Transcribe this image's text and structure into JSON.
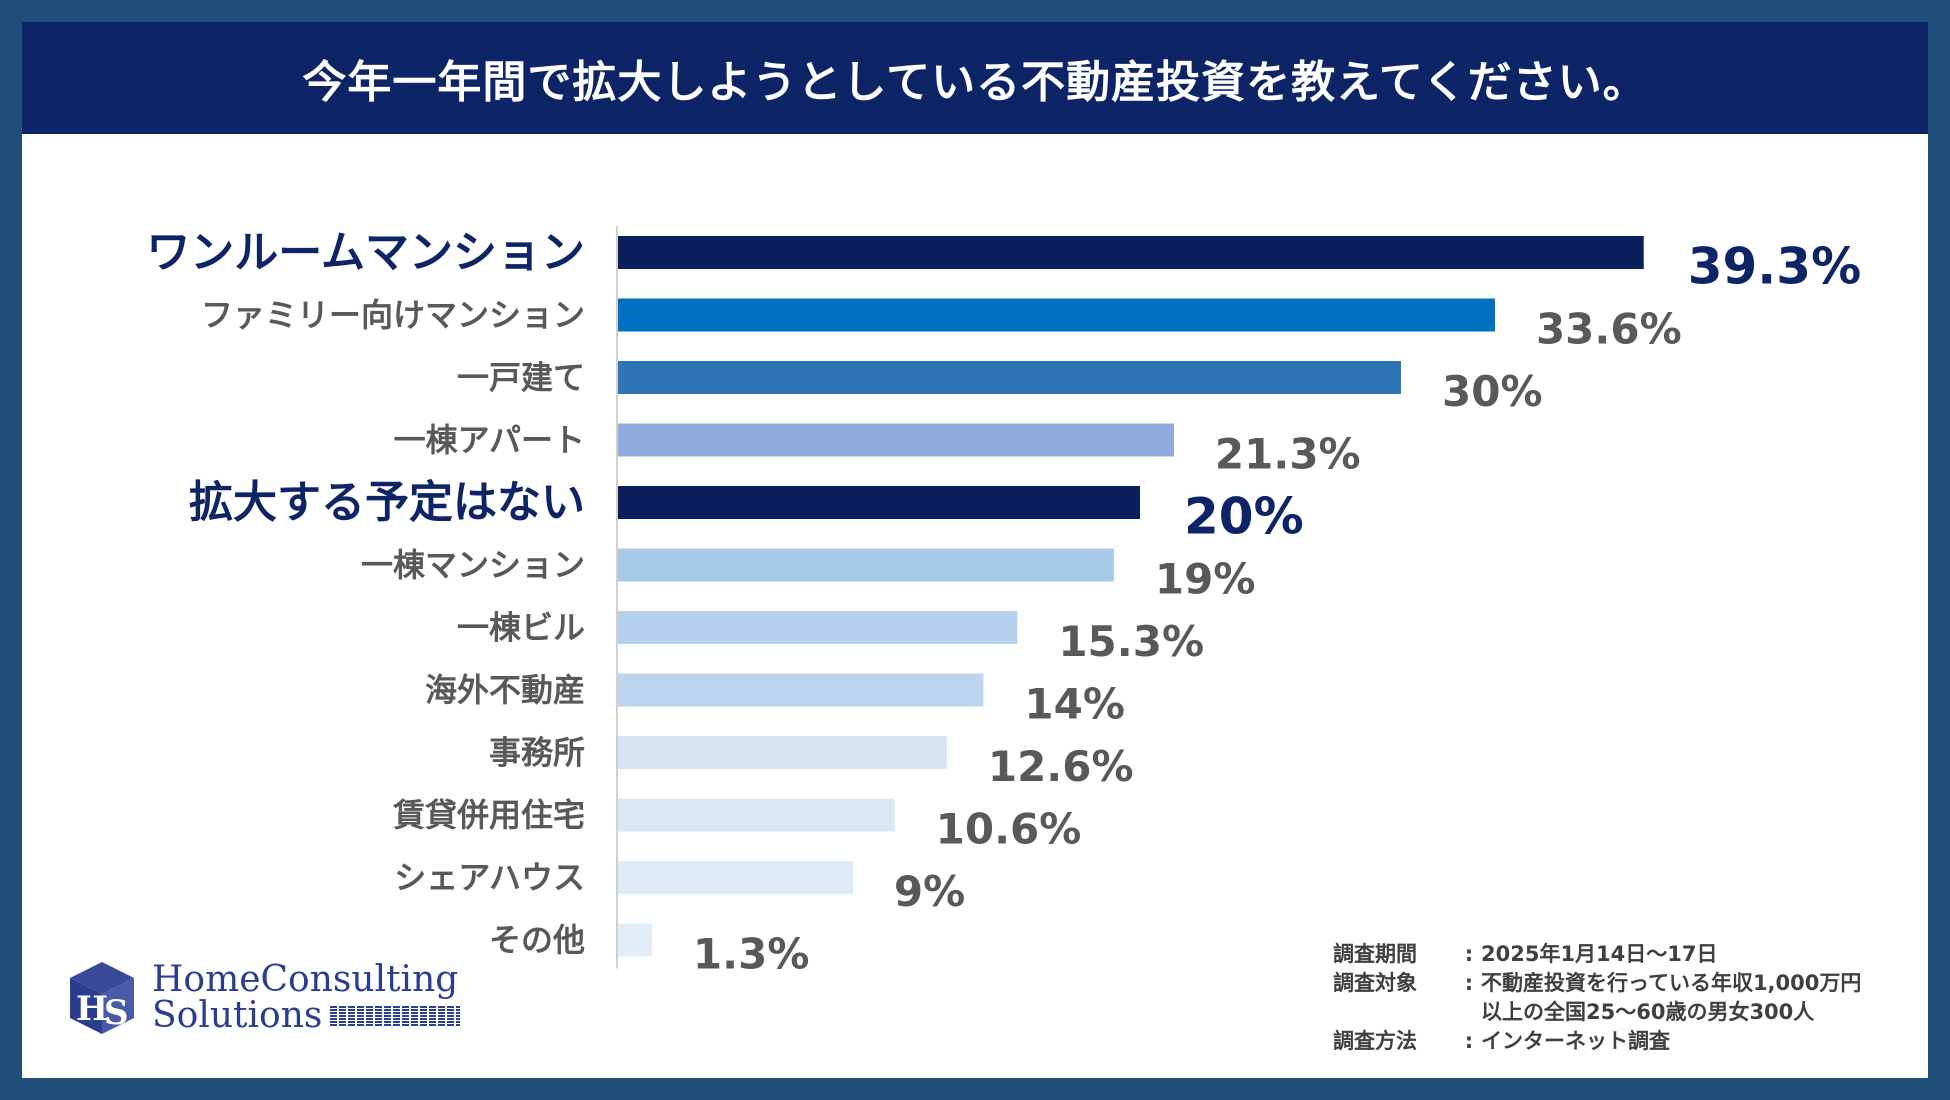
{
  "title": "今年一年間で拡大しようとしている不動産投資を教えてください。",
  "chart_data": {
    "type": "bar",
    "orientation": "horizontal",
    "title": "今年一年間で拡大しようとしている不動産投資を教えてください。",
    "unit": "%",
    "xlim": [
      0,
      42
    ],
    "categories": [
      "ワンルームマンション",
      "ファミリー向けマンション",
      "一戸建て",
      "一棟アパート",
      "拡大する予定はない",
      "一棟マンション",
      "一棟ビル",
      "海外不動産",
      "事務所",
      "賃貸併用住宅",
      "シェアハウス",
      "その他"
    ],
    "values": [
      39.3,
      33.6,
      30,
      21.3,
      20,
      19,
      15.3,
      14,
      12.6,
      10.6,
      9,
      1.3
    ],
    "value_labels": [
      "39.3%",
      "33.6%",
      "30%",
      "21.3%",
      "20%",
      "19%",
      "15.3%",
      "14%",
      "12.6%",
      "10.6%",
      "9%",
      "1.3%"
    ],
    "highlighted": [
      true,
      false,
      false,
      false,
      true,
      false,
      false,
      false,
      false,
      false,
      false,
      false
    ],
    "bar_colors": [
      "#0b1f5c",
      "#0070c0",
      "#2e75b6",
      "#8faadc",
      "#0b1f5c",
      "#a9c9e8",
      "#b4d0ec",
      "#bcd5ee",
      "#d6e4f4",
      "#dae7f5",
      "#deeaf7",
      "#e2edf8"
    ]
  },
  "survey": [
    {
      "key": "調査期間",
      "value": "2025年1月14日〜17日"
    },
    {
      "key": "調査対象",
      "value": "不動産投資を行っている年収1,000万円\n以上の全国25〜60歳の男女300人"
    },
    {
      "key": "調査方法",
      "value": "インターネット調査"
    }
  ],
  "logo": {
    "line1": "HomeConsulting",
    "line2": "Solutions",
    "color": "#2b3d8f"
  },
  "colors": {
    "frame": "#1f4e79",
    "title_bg": "#0d2466",
    "highlight_text": "#0d2466",
    "text": "#595959"
  }
}
